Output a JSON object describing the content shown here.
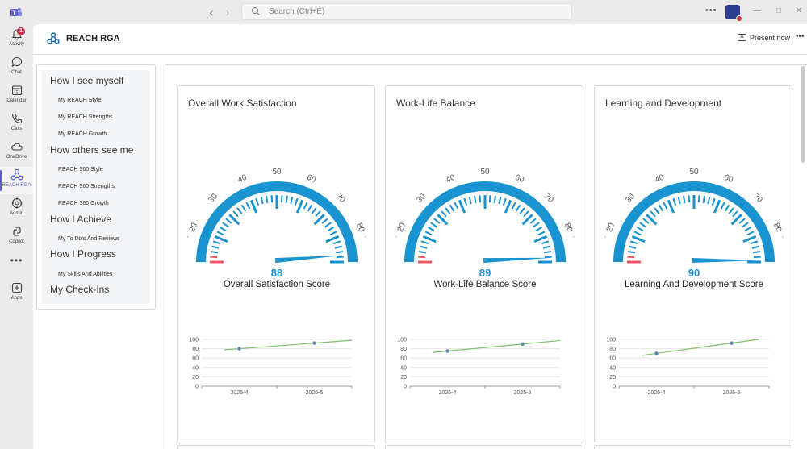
{
  "window": {
    "search_placeholder": "Search (Ctrl+E)"
  },
  "rail": {
    "items": [
      {
        "label": "Activity",
        "icon": "bell-icon",
        "badge": "1"
      },
      {
        "label": "Chat",
        "icon": "chat-icon"
      },
      {
        "label": "Calendar",
        "icon": "calendar-icon"
      },
      {
        "label": "Calls",
        "icon": "phone-icon"
      },
      {
        "label": "OneDrive",
        "icon": "cloud-icon"
      },
      {
        "label": "REACH RGA",
        "icon": "reach-icon",
        "active": true
      },
      {
        "label": "Admin",
        "icon": "admin-icon"
      },
      {
        "label": "Copilot",
        "icon": "copilot-icon"
      },
      {
        "label": "Apps",
        "icon": "apps-icon"
      }
    ]
  },
  "header": {
    "title": "REACH RGA",
    "present_label": "Present now"
  },
  "sidebar": {
    "sections": [
      {
        "title": "How I see myself",
        "items": [
          "My REACH Style",
          "My REACH Strengths",
          "My REACH Growth"
        ]
      },
      {
        "title": "How others see me",
        "items": [
          "REACH 360 Style",
          "REACH 360 Strengths",
          "REACH 360 Growth"
        ]
      },
      {
        "title": "How I Achieve",
        "items": [
          "My To Do's And Reviews"
        ]
      },
      {
        "title": "How I Progress",
        "items": [
          "My Skills And Abilities"
        ]
      },
      {
        "title": "My Check-Ins",
        "items": []
      }
    ]
  },
  "colors": {
    "gauge": "#1a93d1",
    "gauge_low": "#e8585e",
    "trend_line": "#7dc16a",
    "trend_point": "#5b87a8",
    "accent": "#5b5fc7"
  },
  "cards": [
    {
      "title": "Overall Work Satisfaction",
      "score": "88",
      "score_label": "Overall Satisfaction Score"
    },
    {
      "title": "Work-Life Balance",
      "score": "89",
      "score_label": "Work-Life Balance Score"
    },
    {
      "title": "Learning and Development",
      "score": "90",
      "score_label": "Learning And Development Score"
    }
  ],
  "gauge_ticks": [
    "20",
    "30",
    "40",
    "50",
    "60",
    "70",
    "80"
  ],
  "chart_data": [
    {
      "type": "gauge",
      "value": 88,
      "range": [
        10,
        90
      ]
    },
    {
      "type": "gauge",
      "value": 89,
      "range": [
        10,
        90
      ]
    },
    {
      "type": "gauge",
      "value": 90,
      "range": [
        10,
        90
      ]
    },
    {
      "type": "line",
      "categories": [
        "2025-4",
        "2025-5"
      ],
      "values": [
        80,
        92
      ],
      "ylim": [
        0,
        100
      ],
      "yticks": [
        "0",
        "20",
        "40",
        "60",
        "80",
        "100"
      ],
      "grid": true
    },
    {
      "type": "line",
      "categories": [
        "2025-4",
        "2025-5"
      ],
      "values": [
        75,
        90
      ],
      "ylim": [
        0,
        100
      ],
      "yticks": [
        "0",
        "20",
        "40",
        "60",
        "80",
        "100"
      ],
      "grid": true
    },
    {
      "type": "line",
      "categories": [
        "2025-4",
        "2025-5"
      ],
      "values": [
        70,
        92
      ],
      "ylim": [
        0,
        100
      ],
      "yticks": [
        "0",
        "20",
        "40",
        "60",
        "80",
        "100"
      ],
      "grid": true
    }
  ]
}
